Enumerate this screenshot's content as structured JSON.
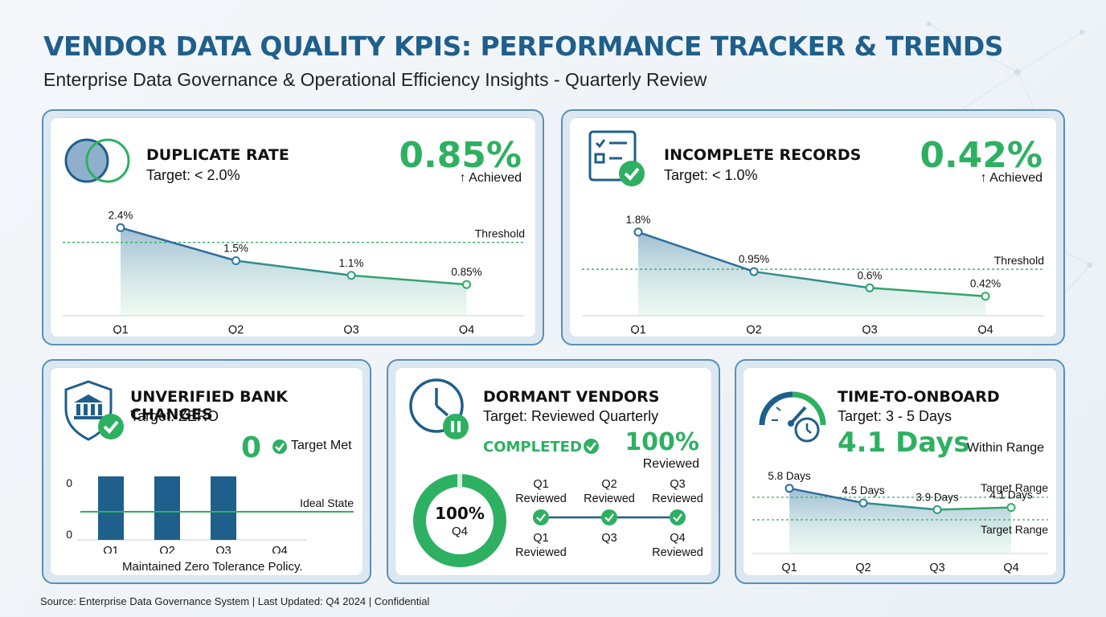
{
  "header": {
    "title": "VENDOR DATA QUALITY KPIS: PERFORMANCE TRACKER & TRENDS",
    "subtitle": "Enterprise Data Governance & Operational Efficiency Insights - Quarterly Review"
  },
  "colors": {
    "accent_blue": "#1f5f8b",
    "accent_green": "#2eb062",
    "line_blue": "#2d6e9c",
    "bar_blue": "#1f5f8b"
  },
  "cards": {
    "duplicate": {
      "title": "DUPLICATE RATE",
      "target": "Target: < 2.0%",
      "value": "0.85%",
      "status": "↑ Achieved",
      "icon": "venn-circles-icon"
    },
    "incomplete": {
      "title": "INCOMPLETE RECORDS",
      "target": "Target: < 1.0%",
      "value": "0.42%",
      "status": "↑ Achieved",
      "icon": "checklist-icon"
    },
    "bank": {
      "title": "UNVERIFIED BANK CHANGES",
      "target": "Target: ZERO",
      "value": "0",
      "status": "Target Met",
      "note": "Maintained Zero Tolerance Policy.",
      "icon": "bank-shield-icon"
    },
    "dormant": {
      "title": "DORMANT VENDORS",
      "target": "Target: Reviewed Quarterly",
      "completed": "COMPLETED",
      "value": "100%",
      "value_sub": "Reviewed",
      "donut_value": "100%",
      "donut_sub": "Q4",
      "icon": "clock-pause-icon",
      "timeline": {
        "top": [
          "Q1\nReviewed",
          "Q2\nReviewed",
          "Q3\nReviewed"
        ],
        "bottom": [
          "Q1\nReviewed",
          "Q3",
          "Q4\nReviewed"
        ]
      }
    },
    "onboard": {
      "title": "TIME-TO-ONBOARD",
      "target": "Target: 3 - 5 Days",
      "value": "4.1 Days",
      "status": "Within Range",
      "icon": "speedometer-clock-icon"
    }
  },
  "chart_data": [
    {
      "type": "area",
      "categories": [
        "Q1",
        "Q2",
        "Q3",
        "Q4"
      ],
      "values": [
        2.4,
        1.5,
        1.1,
        0.85
      ],
      "labels": [
        "2.4%",
        "1.5%",
        "1.1%",
        "0.85%"
      ],
      "threshold": 2.0,
      "threshold_label": "Threshold",
      "ylim": [
        0,
        3
      ]
    },
    {
      "type": "area",
      "categories": [
        "Q1",
        "Q2",
        "Q3",
        "Q4"
      ],
      "values": [
        1.8,
        0.95,
        0.6,
        0.42
      ],
      "labels": [
        "1.8%",
        "0.95%",
        "0.6%",
        "0.42%"
      ],
      "threshold": 1.0,
      "threshold_label": "Threshold",
      "ylim": [
        0,
        2.3
      ]
    },
    {
      "type": "bar",
      "categories": [
        "Q1",
        "Q2",
        "Q3",
        "Q4"
      ],
      "values": [
        0,
        0,
        0,
        0
      ],
      "ytick_labels": [
        "0",
        "0"
      ],
      "reference_label": "Ideal State"
    },
    {
      "type": "area",
      "categories": [
        "Q1",
        "Q2",
        "Q3",
        "Q4"
      ],
      "values": [
        5.8,
        4.5,
        3.9,
        4.1
      ],
      "labels": [
        "5.8 Days",
        "4.5 Days",
        "3.9 Days",
        "4.1 Days"
      ],
      "range": [
        3,
        5
      ],
      "range_labels": [
        "Target Range",
        "Target Range"
      ],
      "ylim": [
        0,
        7
      ]
    }
  ],
  "footer": "Source: Enterprise Data Governance System | Last Updated: Q4 2024 | Confidential"
}
